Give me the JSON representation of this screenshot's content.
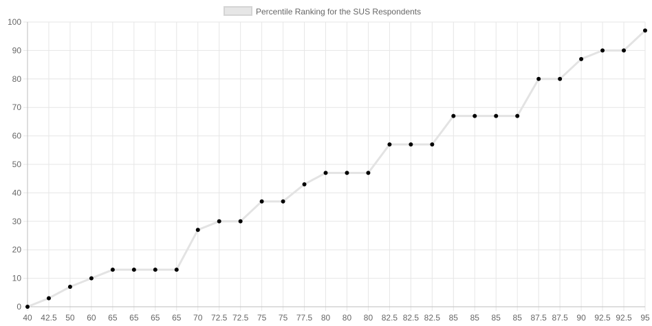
{
  "chart_data": {
    "type": "line",
    "legend": {
      "position": "top",
      "label": "Percentile Ranking for the SUS Respondents"
    },
    "categories": [
      "40",
      "42.5",
      "50",
      "60",
      "65",
      "65",
      "65",
      "65",
      "70",
      "72.5",
      "72.5",
      "75",
      "75",
      "77.5",
      "80",
      "80",
      "80",
      "82.5",
      "82.5",
      "82.5",
      "85",
      "85",
      "85",
      "85",
      "87.5",
      "87.5",
      "90",
      "92.5",
      "92.5",
      "95"
    ],
    "series": [
      {
        "name": "Percentile Ranking for the SUS Respondents",
        "values": [
          0,
          3,
          7,
          10,
          13,
          13,
          13,
          13,
          27,
          30,
          30,
          37,
          37,
          43,
          47,
          47,
          47,
          57,
          57,
          57,
          67,
          67,
          67,
          67,
          80,
          80,
          87,
          90,
          90,
          97
        ],
        "line_color": "#e3e3e3",
        "point_color": "#000000"
      }
    ],
    "ylim": [
      0,
      100
    ],
    "yticks": [
      0,
      10,
      20,
      30,
      40,
      50,
      60,
      70,
      80,
      90,
      100
    ],
    "grid": true
  }
}
